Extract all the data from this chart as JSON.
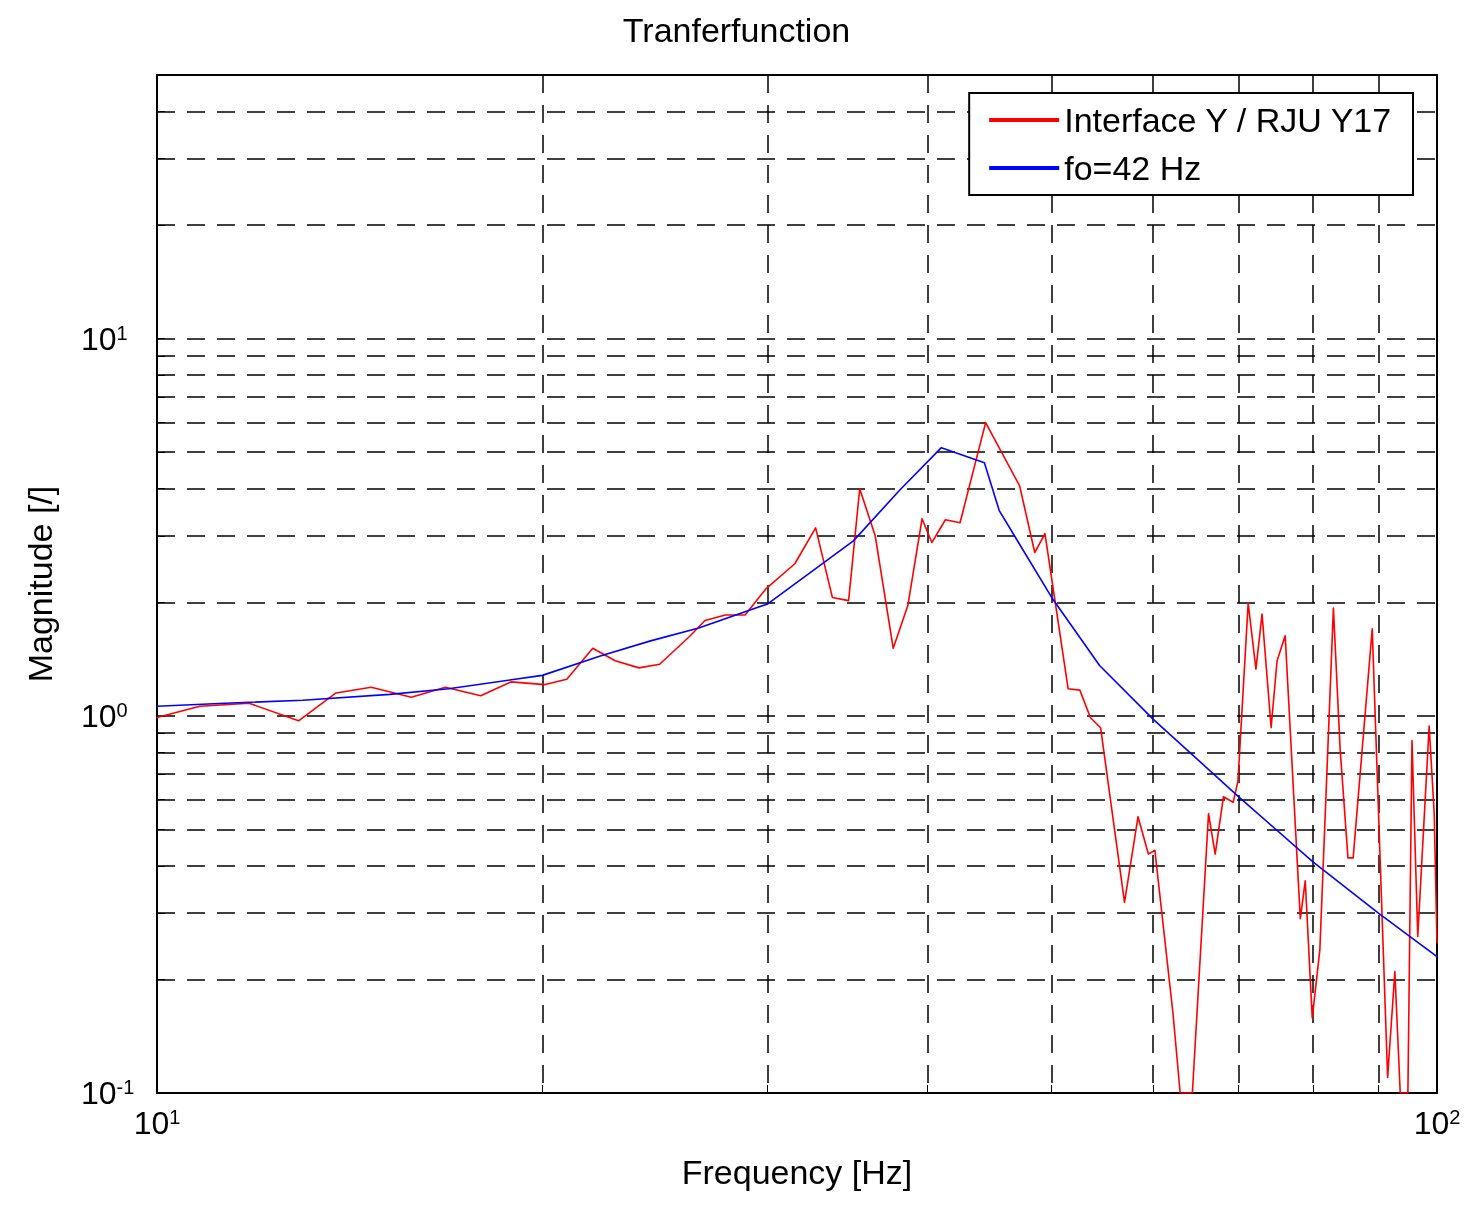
{
  "chart_data": {
    "type": "line",
    "title": "Tranferfunction",
    "xlabel": "Frequency [Hz]",
    "ylabel": "Magnitude [/]",
    "log": "xy",
    "grid": true,
    "legend": "top right",
    "line_style": "solid",
    "marker": "none",
    "xlim": [
      10,
      100
    ],
    "ylim": [
      0.1,
      50
    ],
    "xticks": [
      {
        "value": 10,
        "label": "10$^{1}$"
      },
      {
        "value": 20,
        "label": null
      },
      {
        "value": 30,
        "label": null
      },
      {
        "value": 40,
        "label": null
      },
      {
        "value": 50,
        "label": null
      },
      {
        "value": 60,
        "label": null
      },
      {
        "value": 70,
        "label": null
      },
      {
        "value": 80,
        "label": null
      },
      {
        "value": 90,
        "label": null
      },
      {
        "value": 100,
        "label": "10$^{2}$"
      }
    ],
    "yticks": [
      {
        "value": 0.1,
        "label": "10$^{-1}$"
      },
      {
        "value": 0.2,
        "label": null
      },
      {
        "value": 0.3,
        "label": null
      },
      {
        "value": 0.4,
        "label": null
      },
      {
        "value": 0.5,
        "label": null
      },
      {
        "value": 0.6,
        "label": null
      },
      {
        "value": 0.7,
        "label": null
      },
      {
        "value": 0.8,
        "label": null
      },
      {
        "value": 0.9,
        "label": null
      },
      {
        "value": 1,
        "label": "10$^{0}$"
      },
      {
        "value": 2,
        "label": null
      },
      {
        "value": 3,
        "label": null
      },
      {
        "value": 4,
        "label": null
      },
      {
        "value": 5,
        "label": null
      },
      {
        "value": 6,
        "label": null
      },
      {
        "value": 7,
        "label": null
      },
      {
        "value": 8,
        "label": null
      },
      {
        "value": 9,
        "label": null
      },
      {
        "value": 10,
        "label": "10$^{1}$"
      },
      {
        "value": 20,
        "label": null
      },
      {
        "value": 30,
        "label": null
      },
      {
        "value": 40,
        "label": null
      }
    ],
    "series": [
      {
        "name": "Interface Y / RJU Y17",
        "color": "#ff0000",
        "x": [
          10.0,
          10.8,
          11.8,
          12.9,
          13.8,
          14.7,
          15.8,
          16.8,
          17.9,
          18.9,
          20.1,
          20.9,
          21.9,
          22.8,
          23.8,
          24.7,
          26.1,
          26.8,
          27.8,
          28.8,
          29.9,
          31.5,
          32.7,
          33.7,
          34.7,
          35.4,
          36.4,
          37.6,
          38.6,
          39.6,
          40.3,
          41.3,
          42.4,
          44.4,
          47.2,
          48.5,
          49.4,
          51.5,
          52.6,
          53.6,
          54.6,
          57.0,
          58.4,
          59.5,
          60.2,
          62.2,
          63.0,
          64.4,
          66.3,
          67.1,
          68.1,
          69.3,
          69.9,
          71.2,
          72.2,
          73.0,
          74.2,
          75.0,
          76.1,
          78.2,
          78.9,
          79.9,
          81.0,
          83.0,
          84.0,
          85.2,
          86.0,
          89.0,
          91.5,
          92.7,
          93.6,
          94.9,
          95.6,
          96.6,
          98.6,
          99.5,
          100
        ],
        "values": [
          0.99,
          1.06,
          1.08,
          0.97,
          1.15,
          1.19,
          1.12,
          1.19,
          1.13,
          1.23,
          1.21,
          1.25,
          1.51,
          1.4,
          1.34,
          1.37,
          1.63,
          1.79,
          1.85,
          1.85,
          2.17,
          2.53,
          3.15,
          2.06,
          2.02,
          4.0,
          3.0,
          1.51,
          1.96,
          3.33,
          2.88,
          3.31,
          3.25,
          5.99,
          4.07,
          2.71,
          3.04,
          1.18,
          1.17,
          0.99,
          0.93,
          0.32,
          0.54,
          0.43,
          0.44,
          0.162,
          0.1,
          0.1,
          0.55,
          0.43,
          0.61,
          0.59,
          0.67,
          1.99,
          1.33,
          1.86,
          0.93,
          1.4,
          1.63,
          0.29,
          0.365,
          0.158,
          0.24,
          1.93,
          0.82,
          0.42,
          0.42,
          1.7,
          0.11,
          0.21,
          0.1,
          0.1,
          0.86,
          0.26,
          0.94,
          0.55,
          0.25
        ]
      },
      {
        "name": "fo=42 Hz",
        "color": "#0000ff",
        "x": [
          10.0,
          11.3,
          13.0,
          15.2,
          16.9,
          20.0,
          22.2,
          24.3,
          26.5,
          30.0,
          35.0,
          38.0,
          41.0,
          44.3,
          45.5,
          50.0,
          54.5,
          60.0,
          70.0,
          80.0,
          90.0,
          100
        ],
        "values": [
          1.06,
          1.08,
          1.1,
          1.14,
          1.18,
          1.28,
          1.44,
          1.58,
          1.71,
          1.98,
          2.91,
          3.95,
          5.14,
          4.69,
          3.5,
          2.06,
          1.36,
          0.98,
          0.61,
          0.41,
          0.3,
          0.23
        ]
      }
    ]
  }
}
